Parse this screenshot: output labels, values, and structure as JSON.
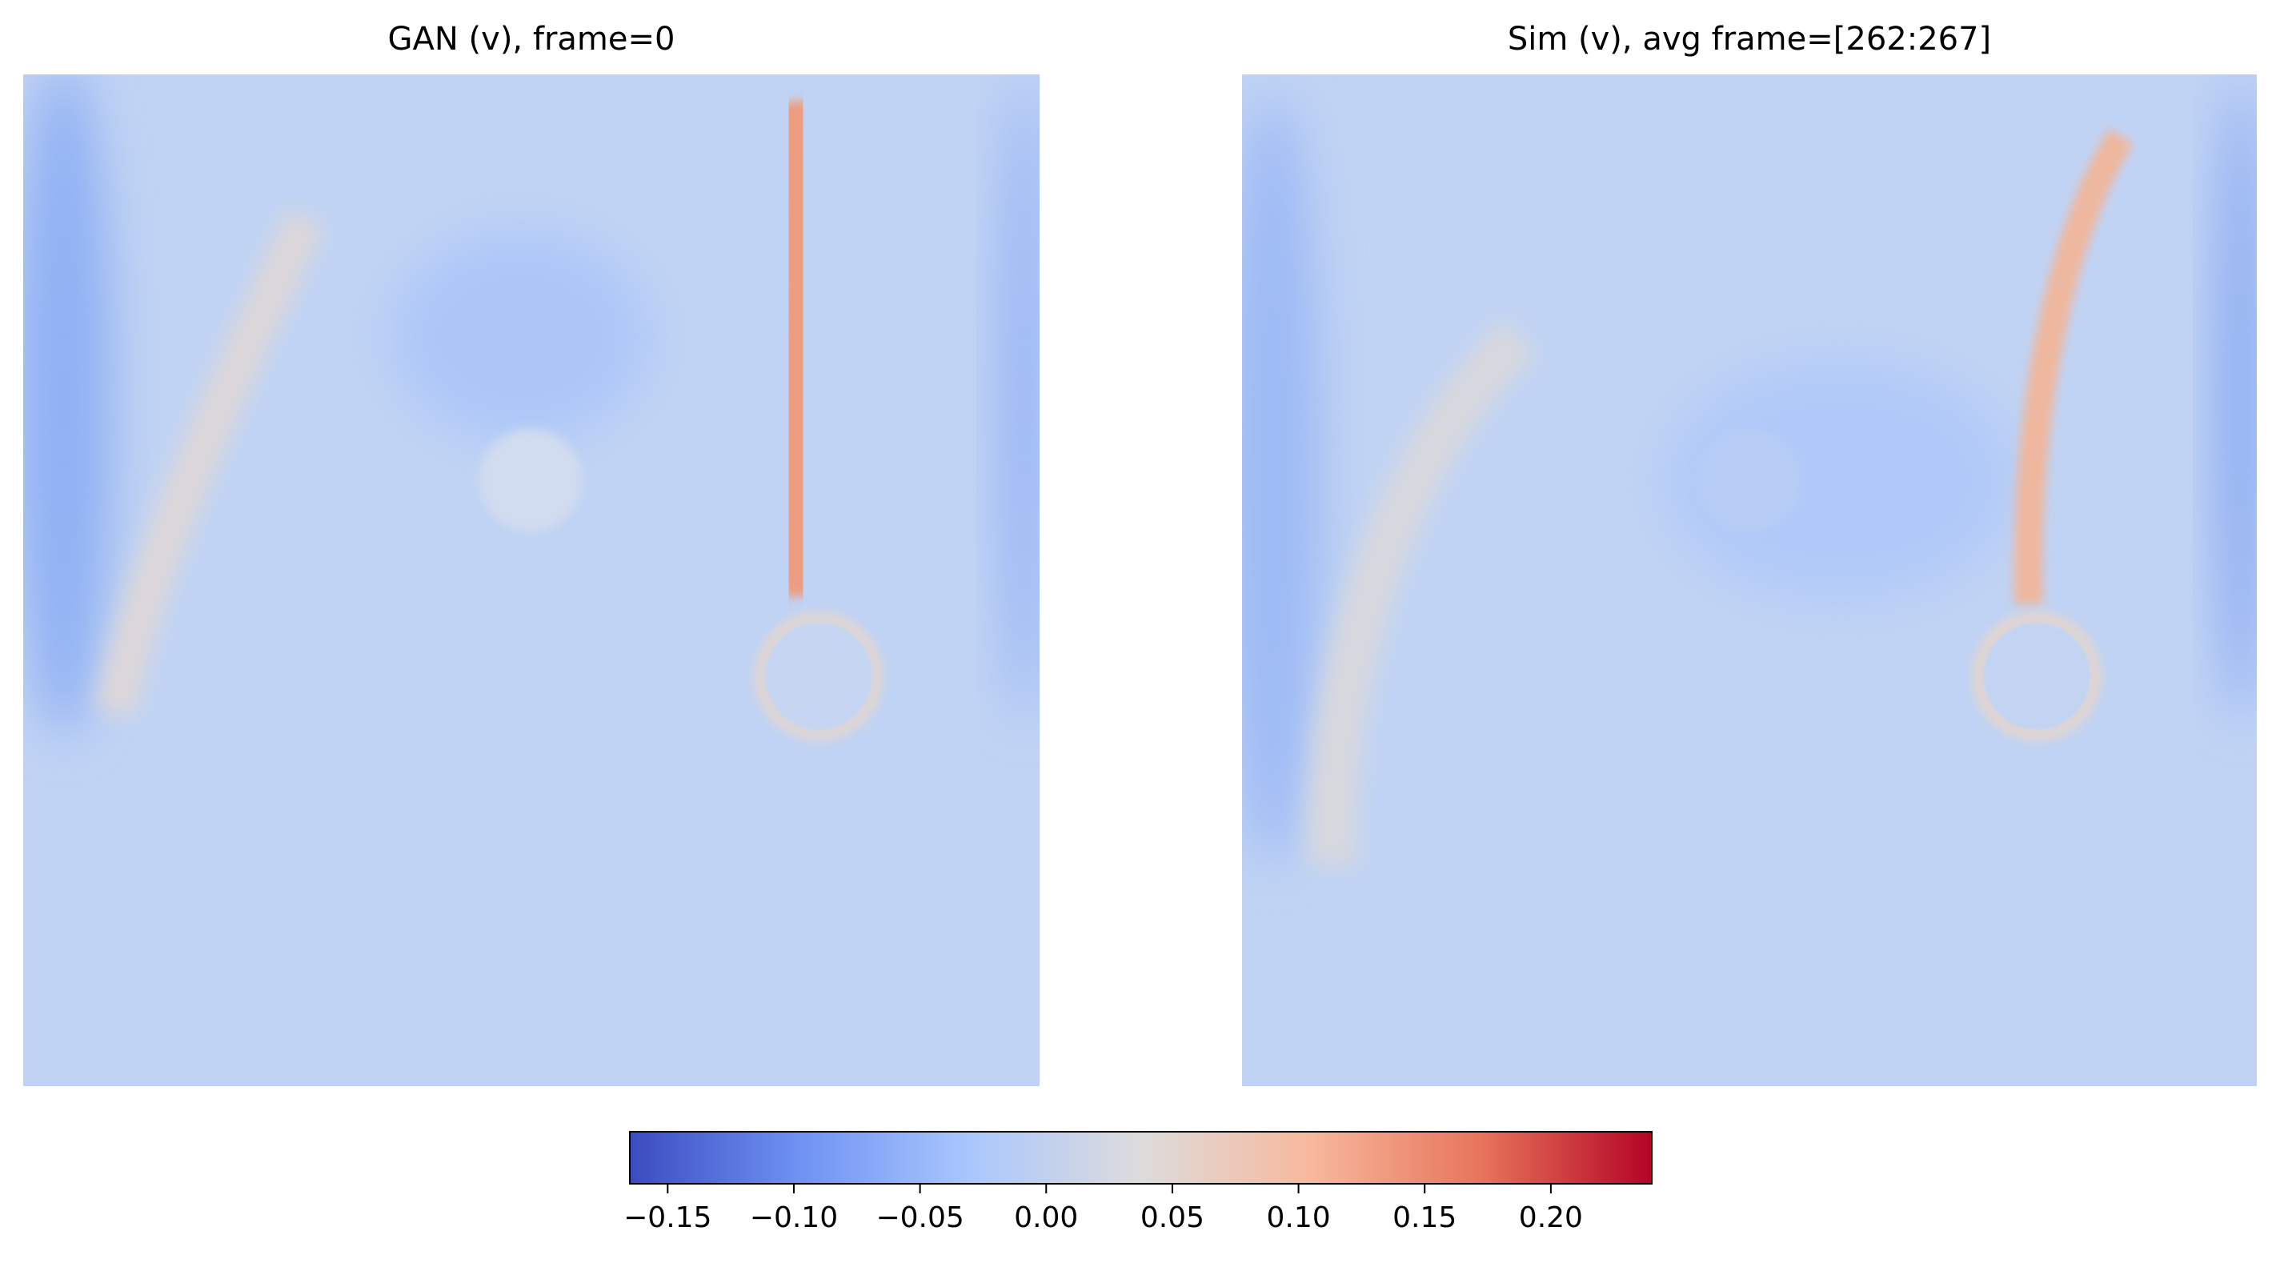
{
  "chart_data": [
    {
      "type": "heatmap",
      "title": "GAN (v), frame=0"
    },
    {
      "type": "heatmap",
      "title": "Sim (v), avg frame=[262:267]"
    }
  ],
  "colorbar": {
    "clim": [
      -0.165,
      0.24
    ],
    "colors": [
      "#3b4cc0",
      "#6f92f3",
      "#aac7fd",
      "#dddcdc",
      "#f7b89c",
      "#e7745b",
      "#b40426"
    ],
    "ticks": [
      {
        "value": -0.15,
        "label": "−0.15"
      },
      {
        "value": -0.1,
        "label": "−0.10"
      },
      {
        "value": -0.05,
        "label": "−0.05"
      },
      {
        "value": 0,
        "label": "0.00"
      },
      0.05,
      {
        "value": 0.1,
        "label": "0.10"
      },
      0.15,
      {
        "value": 0.2,
        "label": "0.20"
      }
    ]
  }
}
